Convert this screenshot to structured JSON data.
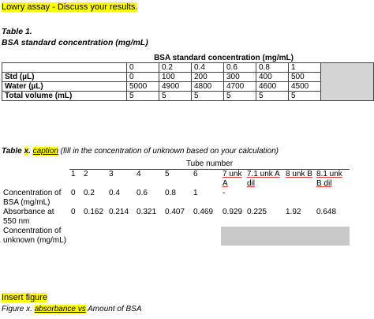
{
  "heading": "Lowry assay - Discuss your results.",
  "table1": {
    "label": "Table 1.",
    "title": "BSA standard concentration (mg/mL)",
    "header": "BSA standard concentration (mg/mL)",
    "concentrations": [
      "0",
      "0.2",
      "0.4",
      "0.6",
      "0.8",
      "1"
    ],
    "rows": [
      {
        "label": "Std (µL)",
        "values": [
          "0",
          "100",
          "200",
          "300",
          "400",
          "500"
        ]
      },
      {
        "label": "Water (µL)",
        "values": [
          "5000",
          "4900",
          "4800",
          "4700",
          "4600",
          "4500"
        ]
      },
      {
        "label": "Total volume (mL)",
        "values": [
          "5",
          "5",
          "5",
          "5",
          "5",
          "5"
        ]
      }
    ]
  },
  "tablex": {
    "title_prefix": "Table ",
    "title_x": "x",
    "title_dot": ". ",
    "title_caption": "caption",
    "title_rest": " (fill in the concentration of unknown based on your calculation)",
    "header": "Tube number",
    "tubes": [
      "1",
      "2",
      "3",
      "4",
      "5",
      "6",
      "7 unk A",
      "7.1 unk A dil",
      "8 unk B",
      "8.1 unk B dil"
    ],
    "conc_label": "Concentration of BSA (mg/mL)",
    "conc_values": [
      "0",
      "0.2",
      "0.4",
      "0.6",
      "0.8",
      "1",
      "-",
      "",
      "",
      ""
    ],
    "abs_label": "Absorbance at 550 nm",
    "abs_values": [
      "0",
      "0.162",
      "0.214",
      "0.321",
      "0.407",
      "0.469",
      "0.929",
      "0.225",
      "1.92",
      "0.648"
    ],
    "unknown_label": "Concentration of unknown (mg/mL)"
  },
  "figure": {
    "label": "Insert figure",
    "caption_prefix": "Figure x. ",
    "caption_highlight": "absorbance vs",
    "caption_rest": " Amount of BSA"
  }
}
